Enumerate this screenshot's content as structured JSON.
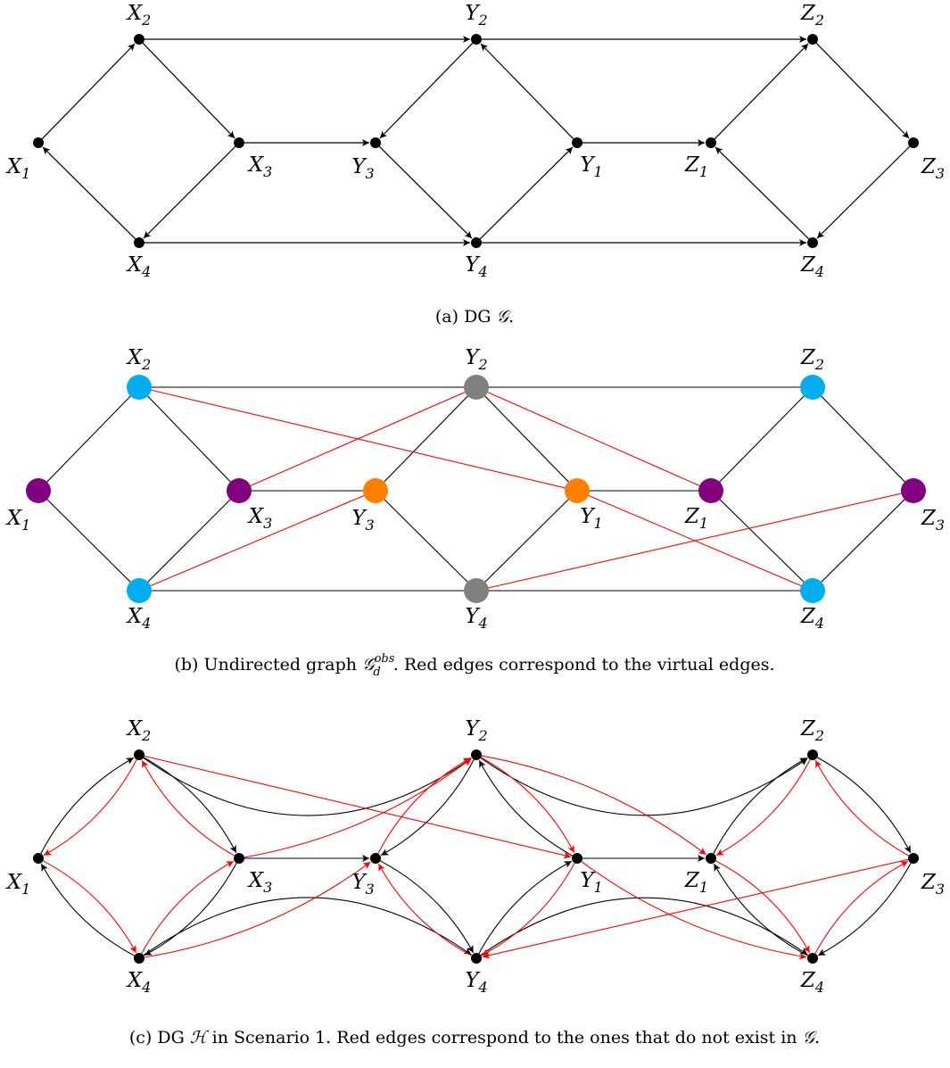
{
  "colors": {
    "edge": "#000000",
    "virtual_edge": "#ff0000",
    "node": "#000000",
    "cyan": "#00aeef",
    "purple": "#800080",
    "orange": "#ff8000",
    "gray": "#808080"
  },
  "nodes": [
    {
      "id": "X1",
      "letter": "X",
      "sub": "1"
    },
    {
      "id": "X2",
      "letter": "X",
      "sub": "2"
    },
    {
      "id": "X3",
      "letter": "X",
      "sub": "3"
    },
    {
      "id": "X4",
      "letter": "X",
      "sub": "4"
    },
    {
      "id": "Y1",
      "letter": "Y",
      "sub": "1"
    },
    {
      "id": "Y2",
      "letter": "Y",
      "sub": "2"
    },
    {
      "id": "Y3",
      "letter": "Y",
      "sub": "3"
    },
    {
      "id": "Y4",
      "letter": "Y",
      "sub": "4"
    },
    {
      "id": "Z1",
      "letter": "Z",
      "sub": "1"
    },
    {
      "id": "Z2",
      "letter": "Z",
      "sub": "2"
    },
    {
      "id": "Z3",
      "letter": "Z",
      "sub": "3"
    },
    {
      "id": "Z4",
      "letter": "Z",
      "sub": "4"
    }
  ],
  "panel_a": {
    "caption": {
      "prefix": "(a) DG ",
      "math": "𝒢",
      "suffix": "."
    },
    "edges": [
      [
        "X1",
        "X2"
      ],
      [
        "X2",
        "X3"
      ],
      [
        "X3",
        "X4"
      ],
      [
        "X4",
        "X1"
      ],
      [
        "X2",
        "Y2"
      ],
      [
        "X3",
        "Y3"
      ],
      [
        "X4",
        "Y4"
      ],
      [
        "Y2",
        "Y3"
      ],
      [
        "Y3",
        "Y4"
      ],
      [
        "Y4",
        "Y1"
      ],
      [
        "Y1",
        "Y2"
      ],
      [
        "Y2",
        "Z2"
      ],
      [
        "Y1",
        "Z1"
      ],
      [
        "Y4",
        "Z4"
      ],
      [
        "Z1",
        "Z2"
      ],
      [
        "Z2",
        "Z3"
      ],
      [
        "Z3",
        "Z4"
      ],
      [
        "Z4",
        "Z1"
      ]
    ]
  },
  "panel_b": {
    "caption": {
      "prefix": "(b) Undirected graph ",
      "math": "𝒢",
      "sup": "obs",
      "sub": "d",
      "suffix": ". Red edges correspond to the virtual edges."
    },
    "node_colors": {
      "X1": "purple",
      "X2": "cyan",
      "X3": "purple",
      "X4": "cyan",
      "Y1": "orange",
      "Y2": "gray",
      "Y3": "orange",
      "Y4": "gray",
      "Z1": "purple",
      "Z2": "cyan",
      "Z3": "purple",
      "Z4": "cyan"
    },
    "edges": [
      [
        "X1",
        "X2"
      ],
      [
        "X1",
        "X4"
      ],
      [
        "X2",
        "X3"
      ],
      [
        "X3",
        "X4"
      ],
      [
        "X2",
        "Y2"
      ],
      [
        "X3",
        "Y3"
      ],
      [
        "X4",
        "Y4"
      ],
      [
        "Y2",
        "Y3"
      ],
      [
        "Y3",
        "Y4"
      ],
      [
        "Y4",
        "Y1"
      ],
      [
        "Y1",
        "Y2"
      ],
      [
        "Y1",
        "Z1"
      ],
      [
        "Y2",
        "Z2"
      ],
      [
        "Y4",
        "Z4"
      ],
      [
        "Z1",
        "Z2"
      ],
      [
        "Z2",
        "Z3"
      ],
      [
        "Z3",
        "Z4"
      ],
      [
        "Z4",
        "Z1"
      ]
    ],
    "virtual_edges": [
      [
        "X2",
        "Y1"
      ],
      [
        "X3",
        "Y2"
      ],
      [
        "X4",
        "Y3"
      ],
      [
        "Y2",
        "Z1"
      ],
      [
        "Y1",
        "Z4"
      ],
      [
        "Y4",
        "Z3"
      ]
    ]
  },
  "panel_c": {
    "caption": {
      "prefix": "(c) DG ",
      "math": "ℋ",
      "suffix_pre": " in Scenario 1. Red edges correspond to the ones that do not exist in ",
      "math2": "𝒢",
      "suffix": "."
    },
    "edges": [
      {
        "from": "X1",
        "to": "X2",
        "bend": -0.15
      },
      {
        "from": "X2",
        "to": "X3",
        "bend": -0.15
      },
      {
        "from": "X3",
        "to": "X4",
        "bend": -0.15
      },
      {
        "from": "X4",
        "to": "X1",
        "bend": -0.15
      },
      {
        "from": "X3",
        "to": "Y3",
        "bend": 0
      },
      {
        "from": "Y2",
        "to": "Y3",
        "bend": -0.15
      },
      {
        "from": "Y3",
        "to": "Y4",
        "bend": -0.15
      },
      {
        "from": "Y4",
        "to": "Y1",
        "bend": -0.15
      },
      {
        "from": "Y1",
        "to": "Y2",
        "bend": -0.15
      },
      {
        "from": "Y1",
        "to": "Z1",
        "bend": 0
      },
      {
        "from": "Z1",
        "to": "Z2",
        "bend": -0.15
      },
      {
        "from": "Z2",
        "to": "Z3",
        "bend": -0.15
      },
      {
        "from": "Z3",
        "to": "Z4",
        "bend": -0.15
      },
      {
        "from": "Z4",
        "to": "Z1",
        "bend": -0.15
      },
      {
        "from": "X2",
        "to": "Y2",
        "bend": 0.35
      },
      {
        "from": "X4",
        "to": "Y4",
        "bend": -0.35
      },
      {
        "from": "Y2",
        "to": "Z2",
        "bend": 0.35
      },
      {
        "from": "Y4",
        "to": "Z4",
        "bend": -0.35
      }
    ],
    "virtual_edges": [
      {
        "from": "X2",
        "to": "X1",
        "bend": -0.15
      },
      {
        "from": "X1",
        "to": "X4",
        "bend": -0.15
      },
      {
        "from": "X3",
        "to": "X2",
        "bend": -0.15
      },
      {
        "from": "X4",
        "to": "X3",
        "bend": -0.15
      },
      {
        "from": "X2",
        "to": "Y1",
        "bend": 0
      },
      {
        "from": "X3",
        "to": "Y2",
        "bend": 0.12
      },
      {
        "from": "X4",
        "to": "Y3",
        "bend": 0.12
      },
      {
        "from": "Y3",
        "to": "Y2",
        "bend": -0.15
      },
      {
        "from": "Y4",
        "to": "Y3",
        "bend": -0.15
      },
      {
        "from": "Y2",
        "to": "Y1",
        "bend": -0.15
      },
      {
        "from": "Y1",
        "to": "Y4",
        "bend": -0.15
      },
      {
        "from": "Y2",
        "to": "Z1",
        "bend": -0.12
      },
      {
        "from": "Y1",
        "to": "Z4",
        "bend": 0.12
      },
      {
        "from": "Z3",
        "to": "Y4",
        "bend": 0
      },
      {
        "from": "Z1",
        "to": "Z4",
        "bend": -0.15
      },
      {
        "from": "Z2",
        "to": "Z1",
        "bend": -0.15
      },
      {
        "from": "Z3",
        "to": "Z2",
        "bend": -0.15
      },
      {
        "from": "Z4",
        "to": "Z3",
        "bend": -0.15
      }
    ]
  }
}
